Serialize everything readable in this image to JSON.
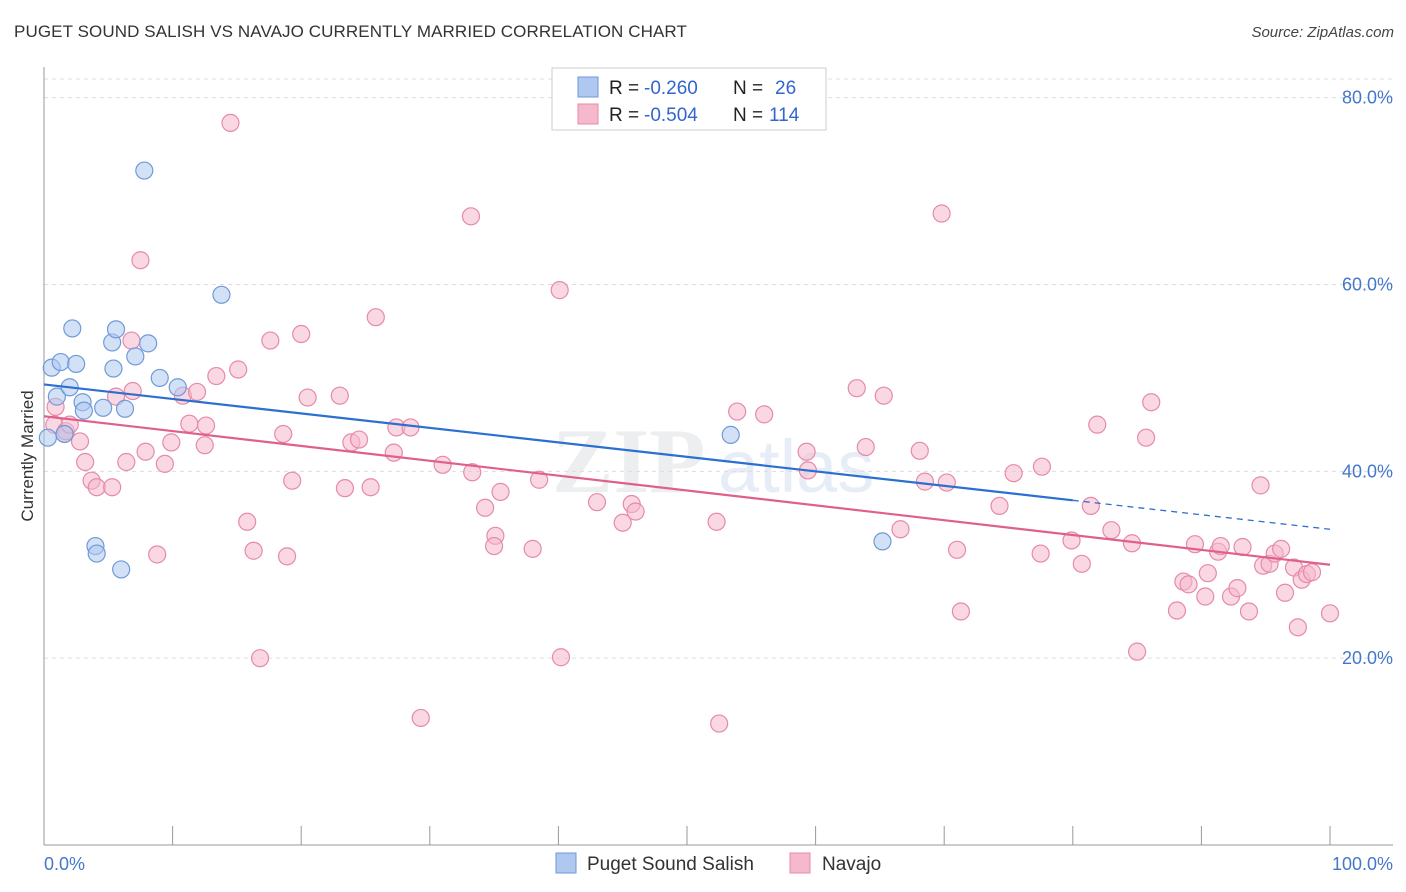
{
  "header": {
    "title": "PUGET SOUND SALISH VS NAVAJO CURRENTLY MARRIED CORRELATION CHART",
    "source": "Source: ZipAtlas.com"
  },
  "watermark": {
    "zip": "ZIP",
    "atlas": "atlas"
  },
  "colors": {
    "blue_fill": "#aec8f0",
    "blue_stroke": "#6f9ad8",
    "blue_line": "#2b6fd1",
    "pink_fill": "#f6b8cc",
    "pink_stroke": "#e68aa8",
    "pink_line": "#e0608c",
    "tick_text": "#4477cc",
    "grid": "#dddddd"
  },
  "legend": {
    "rows": [
      {
        "r_label": "R =",
        "r_value": "-0.260",
        "n_label": "N =",
        "n_value": "26"
      },
      {
        "r_label": "R =",
        "r_value": "-0.504",
        "n_label": "N =",
        "n_value": "114"
      }
    ]
  },
  "bottom_legend": {
    "items": [
      "Puget Sound Salish",
      "Navajo"
    ]
  },
  "chart_data": {
    "type": "scatter",
    "title": "PUGET SOUND SALISH VS NAVAJO CURRENTLY MARRIED CORRELATION CHART",
    "xlabel": "",
    "ylabel": "Currently Married",
    "xlim": [
      0,
      100
    ],
    "ylim": [
      0,
      82
    ],
    "x_tick_labels": [
      "0.0%",
      "100.0%"
    ],
    "y_ticks": [
      20,
      40,
      60,
      80
    ],
    "y_tick_labels": [
      "20.0%",
      "40.0%",
      "60.0%",
      "80.0%"
    ],
    "grid": true,
    "legend_position": "top-center",
    "series": [
      {
        "name": "Puget Sound Salish",
        "color": "#aec8f0",
        "r": -0.26,
        "n": 26,
        "trend": {
          "x": [
            0,
            80
          ],
          "y": [
            49.3,
            36.9
          ],
          "dashed_to": [
            100,
            33.8
          ]
        },
        "points": [
          [
            0.3,
            43.6
          ],
          [
            0.6,
            51.1
          ],
          [
            1.0,
            48.0
          ],
          [
            1.3,
            51.7
          ],
          [
            1.6,
            44.0
          ],
          [
            2.0,
            49.0
          ],
          [
            2.2,
            55.3
          ],
          [
            2.5,
            51.5
          ],
          [
            3.0,
            47.4
          ],
          [
            3.1,
            46.5
          ],
          [
            4.0,
            32.0
          ],
          [
            4.1,
            31.2
          ],
          [
            4.6,
            46.8
          ],
          [
            5.3,
            53.8
          ],
          [
            5.4,
            51.0
          ],
          [
            5.6,
            55.2
          ],
          [
            6.0,
            29.5
          ],
          [
            6.3,
            46.7
          ],
          [
            7.1,
            52.3
          ],
          [
            7.8,
            72.2
          ],
          [
            8.1,
            53.7
          ],
          [
            9.0,
            50.0
          ],
          [
            10.4,
            49.0
          ],
          [
            13.8,
            58.9
          ],
          [
            53.4,
            43.9
          ],
          [
            65.2,
            32.5
          ]
        ]
      },
      {
        "name": "Navajo",
        "color": "#f6b8cc",
        "r": -0.504,
        "n": 114,
        "trend": {
          "x": [
            0,
            100
          ],
          "y": [
            45.9,
            30.0
          ]
        },
        "points": [
          [
            0.8,
            45.0
          ],
          [
            0.9,
            46.9
          ],
          [
            1.6,
            44.0
          ],
          [
            1.7,
            44.3
          ],
          [
            2.0,
            45.0
          ],
          [
            2.8,
            43.2
          ],
          [
            3.2,
            41.0
          ],
          [
            3.7,
            39.0
          ],
          [
            4.1,
            38.3
          ],
          [
            5.3,
            38.3
          ],
          [
            5.6,
            48.0
          ],
          [
            6.4,
            41.0
          ],
          [
            6.8,
            54.0
          ],
          [
            6.9,
            48.6
          ],
          [
            7.5,
            62.6
          ],
          [
            7.9,
            42.1
          ],
          [
            8.8,
            31.1
          ],
          [
            9.4,
            40.8
          ],
          [
            9.9,
            43.1
          ],
          [
            10.8,
            48.1
          ],
          [
            11.3,
            45.1
          ],
          [
            11.9,
            48.5
          ],
          [
            12.5,
            42.8
          ],
          [
            12.6,
            44.9
          ],
          [
            13.4,
            50.2
          ],
          [
            14.5,
            77.3
          ],
          [
            15.1,
            50.9
          ],
          [
            15.8,
            34.6
          ],
          [
            16.3,
            31.5
          ],
          [
            16.8,
            20.0
          ],
          [
            17.6,
            54.0
          ],
          [
            18.6,
            44.0
          ],
          [
            18.9,
            30.9
          ],
          [
            19.3,
            39.0
          ],
          [
            20.0,
            54.7
          ],
          [
            20.5,
            47.9
          ],
          [
            23.0,
            48.1
          ],
          [
            23.4,
            38.2
          ],
          [
            23.9,
            43.1
          ],
          [
            24.5,
            43.4
          ],
          [
            25.4,
            38.3
          ],
          [
            25.8,
            56.5
          ],
          [
            27.2,
            42.0
          ],
          [
            27.4,
            44.7
          ],
          [
            28.5,
            44.7
          ],
          [
            29.3,
            13.6
          ],
          [
            31.0,
            40.7
          ],
          [
            33.2,
            67.3
          ],
          [
            33.3,
            39.9
          ],
          [
            34.3,
            36.1
          ],
          [
            35.1,
            33.1
          ],
          [
            35.0,
            32.0
          ],
          [
            35.5,
            37.8
          ],
          [
            38.0,
            31.7
          ],
          [
            38.5,
            39.1
          ],
          [
            40.1,
            59.4
          ],
          [
            40.2,
            20.1
          ],
          [
            43.0,
            36.7
          ],
          [
            45.0,
            34.5
          ],
          [
            45.7,
            36.5
          ],
          [
            46.0,
            35.7
          ],
          [
            52.3,
            34.6
          ],
          [
            52.5,
            13.0
          ],
          [
            53.9,
            46.4
          ],
          [
            56.0,
            46.1
          ],
          [
            59.3,
            42.1
          ],
          [
            59.4,
            40.1
          ],
          [
            63.2,
            48.9
          ],
          [
            63.9,
            42.6
          ],
          [
            65.3,
            48.1
          ],
          [
            66.6,
            33.8
          ],
          [
            68.1,
            42.2
          ],
          [
            68.5,
            38.9
          ],
          [
            70.2,
            38.8
          ],
          [
            69.8,
            67.6
          ],
          [
            71.0,
            31.6
          ],
          [
            71.3,
            25.0
          ],
          [
            74.3,
            36.3
          ],
          [
            75.4,
            39.8
          ],
          [
            77.5,
            31.2
          ],
          [
            77.6,
            40.5
          ],
          [
            79.9,
            32.6
          ],
          [
            80.7,
            30.1
          ],
          [
            81.4,
            36.3
          ],
          [
            81.9,
            45.0
          ],
          [
            83.0,
            33.7
          ],
          [
            84.6,
            32.3
          ],
          [
            85.0,
            20.7
          ],
          [
            85.7,
            43.6
          ],
          [
            86.1,
            47.4
          ],
          [
            88.1,
            25.1
          ],
          [
            88.6,
            28.2
          ],
          [
            89.0,
            27.9
          ],
          [
            89.5,
            32.2
          ],
          [
            90.3,
            26.6
          ],
          [
            90.5,
            29.1
          ],
          [
            91.3,
            31.4
          ],
          [
            91.5,
            32.0
          ],
          [
            92.3,
            26.6
          ],
          [
            92.8,
            27.5
          ],
          [
            93.2,
            31.9
          ],
          [
            93.7,
            25.0
          ],
          [
            94.6,
            38.5
          ],
          [
            94.8,
            29.9
          ],
          [
            95.3,
            30.1
          ],
          [
            95.7,
            31.2
          ],
          [
            96.2,
            31.7
          ],
          [
            96.5,
            27.0
          ],
          [
            97.2,
            29.7
          ],
          [
            97.5,
            23.3
          ],
          [
            97.8,
            28.4
          ],
          [
            98.2,
            29.0
          ],
          [
            98.6,
            29.2
          ],
          [
            100.0,
            24.8
          ]
        ]
      }
    ]
  }
}
